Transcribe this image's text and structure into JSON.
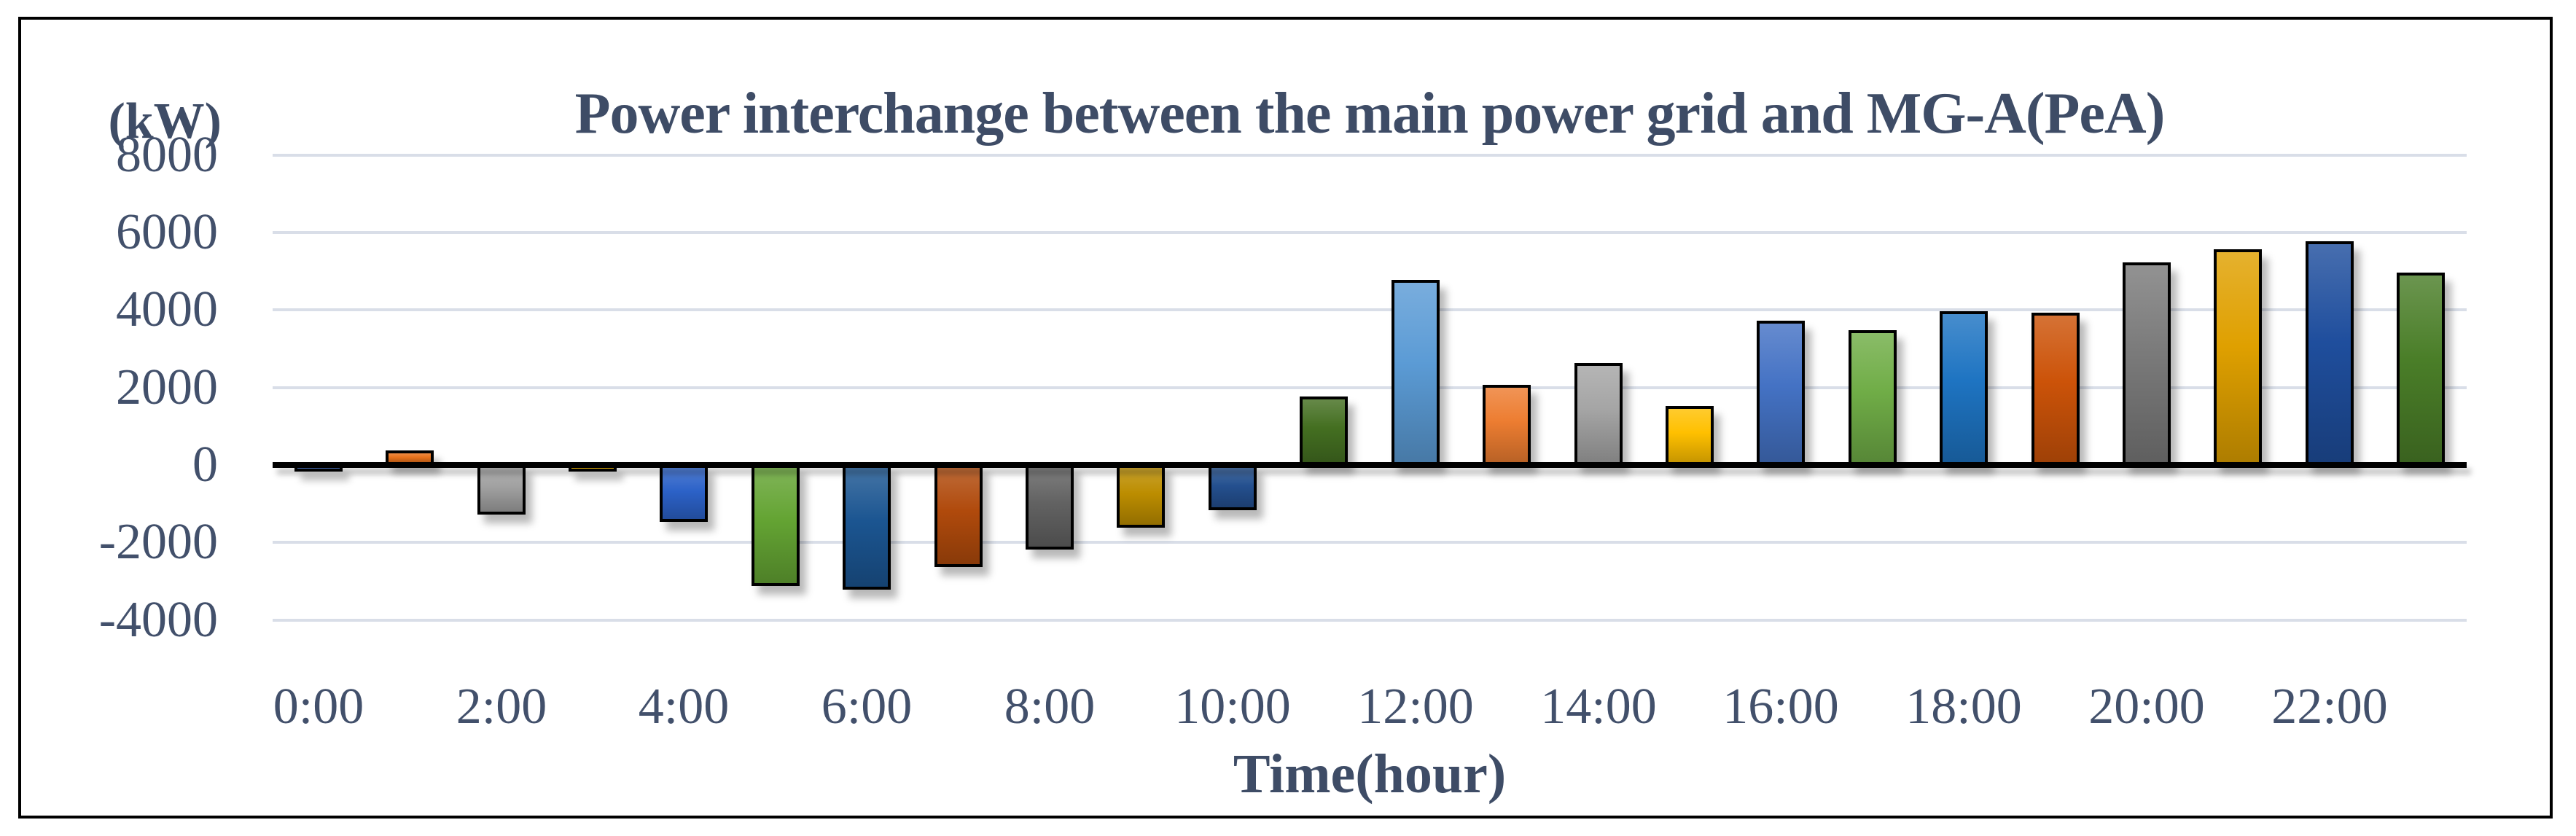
{
  "window": {
    "background_color": "#FFFFFF",
    "frame_border_color": "#000000"
  },
  "header": {
    "title": "Power interchange between the main power grid and MG-A(PeA)",
    "unit_label": "(kW)"
  },
  "chart_data": {
    "type": "bar",
    "title": "Power interchange between the main power grid and MG-A(PeA)",
    "unit_label": "(kW)",
    "xlabel": "Time(hour)",
    "ylabel": "",
    "categories": [
      "0:00",
      "1:00",
      "2:00",
      "3:00",
      "4:00",
      "5:00",
      "6:00",
      "7:00",
      "8:00",
      "9:00",
      "10:00",
      "11:00",
      "12:00",
      "13:00",
      "14:00",
      "15:00",
      "16:00",
      "17:00",
      "18:00",
      "19:00",
      "20:00",
      "21:00",
      "22:00",
      "23:00"
    ],
    "values": [
      -100,
      300,
      -1200,
      -100,
      -1400,
      -3050,
      -3150,
      -2550,
      -2100,
      -1550,
      -1100,
      1700,
      4700,
      2000,
      2550,
      1450,
      3650,
      3400,
      3900,
      3850,
      5150,
      5500,
      5700,
      4900
    ],
    "bar_colors": [
      "#4472C4",
      "#E8721C",
      "#A0A0A0",
      "#FFC000",
      "#2C62C8",
      "#64A433",
      "#1B5591",
      "#B04A0C",
      "#626262",
      "#BC8D00",
      "#24508F",
      "#446F21",
      "#5B9BD5",
      "#ED7D31",
      "#A5A5A5",
      "#FFC000",
      "#4472C4",
      "#70AD47",
      "#1E74C2",
      "#CC5309",
      "#7A7A7A",
      "#DFA000",
      "#1F4E9D",
      "#4A7E28"
    ],
    "y_ticks": [
      8000,
      6000,
      4000,
      2000,
      0,
      -2000,
      -4000
    ],
    "x_tick_labels": [
      "0:00",
      "2:00",
      "4:00",
      "6:00",
      "8:00",
      "10:00",
      "12:00",
      "14:00",
      "16:00",
      "18:00",
      "20:00",
      "22:00"
    ],
    "ylim": [
      -4000,
      8000
    ],
    "grid": true,
    "legend": "none",
    "gridline_color": "#D9DEE8",
    "axis_color": "#000000",
    "text_color": "#42506B",
    "title_color": "#3E4C66",
    "bar_outline_color": "#000000"
  }
}
